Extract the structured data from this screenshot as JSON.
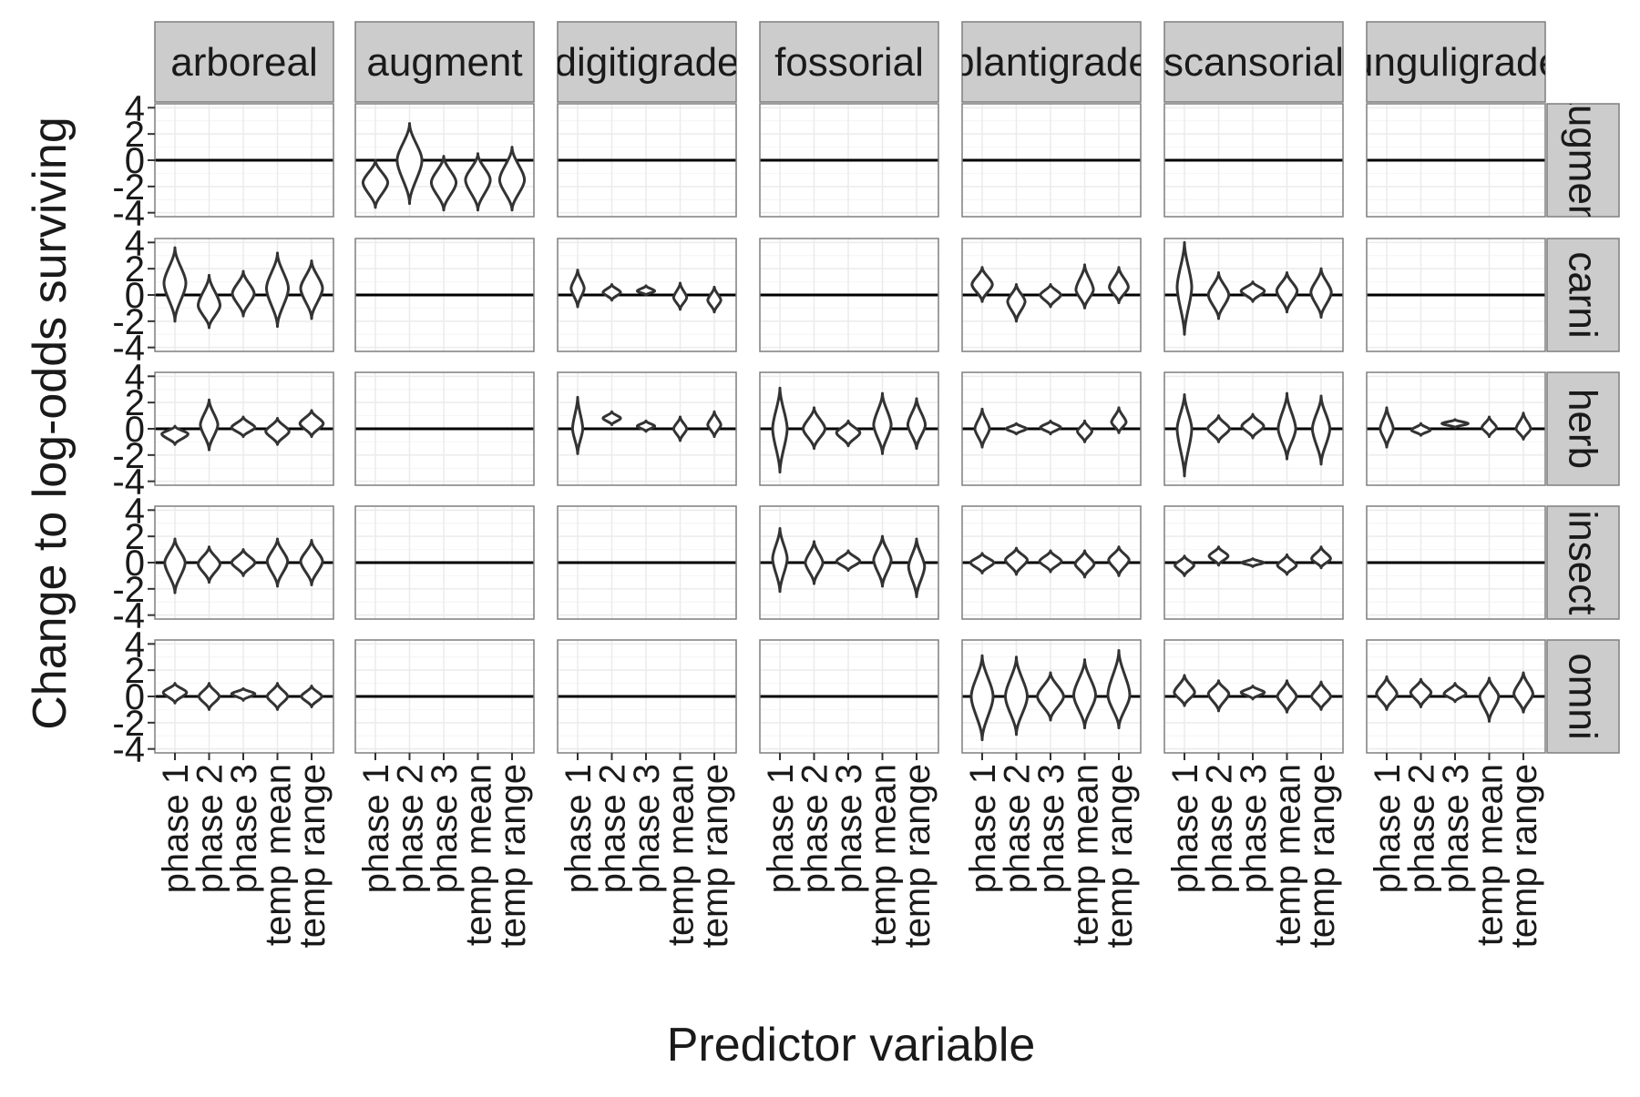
{
  "chart_data": {
    "type": "violin",
    "xlabel": "Predictor variable",
    "ylabel": "Change to log-odds surviving",
    "categories": [
      "phase 1",
      "phase 2",
      "phase 3",
      "temp mean",
      "temp range"
    ],
    "yticks": [
      4,
      2,
      0,
      -2,
      -4
    ],
    "ylim": [
      -4.3,
      4.3
    ],
    "grid": true,
    "columns": [
      "arboreal",
      "augment",
      "digitigrade",
      "fossorial",
      "plantigrade",
      "scansorial",
      "unguligrade"
    ],
    "rows": [
      "augment",
      "carni",
      "herb",
      "insect",
      "omni"
    ],
    "colors": {
      "violin_stroke": "#333333",
      "panel_border": "#7f7f7f",
      "strip_fill": "#cccccc",
      "grid_major": "#ebebeb",
      "grid_minor": "#f4f4f4",
      "zero_line": "#000000"
    },
    "violin_sets": {
      "aug": [
        {
          "c": -1.7,
          "lo": -3.6,
          "hi": 0.0,
          "w": 0.85
        },
        {
          "c": 0.0,
          "lo": -3.3,
          "hi": 2.8,
          "w": 0.85
        },
        {
          "c": -1.7,
          "lo": -3.8,
          "hi": 0.3,
          "w": 0.85
        },
        {
          "c": -1.5,
          "lo": -3.8,
          "hi": 0.5,
          "w": 0.85
        },
        {
          "c": -1.5,
          "lo": -3.8,
          "hi": 1.0,
          "w": 0.85
        }
      ],
      "arb_c": [
        {
          "c": 0.9,
          "lo": -2.0,
          "hi": 3.6,
          "w": 0.75
        },
        {
          "c": -0.8,
          "lo": -2.5,
          "hi": 1.5,
          "w": 0.75
        },
        {
          "c": 0.1,
          "lo": -1.6,
          "hi": 1.8,
          "w": 0.75
        },
        {
          "c": 0.5,
          "lo": -2.4,
          "hi": 3.2,
          "w": 0.75
        },
        {
          "c": 0.5,
          "lo": -1.8,
          "hi": 2.6,
          "w": 0.75
        }
      ],
      "arb_h": [
        {
          "c": -0.4,
          "lo": -1.2,
          "hi": 0.2,
          "w": 0.9
        },
        {
          "c": 0.3,
          "lo": -1.6,
          "hi": 2.2,
          "w": 0.6
        },
        {
          "c": 0.1,
          "lo": -0.6,
          "hi": 0.9,
          "w": 0.8
        },
        {
          "c": -0.2,
          "lo": -1.2,
          "hi": 0.8,
          "w": 0.8
        },
        {
          "c": 0.4,
          "lo": -0.6,
          "hi": 1.4,
          "w": 0.8
        }
      ],
      "arb_i": [
        {
          "c": 0.0,
          "lo": -2.3,
          "hi": 1.8,
          "w": 0.7
        },
        {
          "c": -0.1,
          "lo": -1.5,
          "hi": 1.2,
          "w": 0.75
        },
        {
          "c": 0.0,
          "lo": -1.0,
          "hi": 1.0,
          "w": 0.8
        },
        {
          "c": 0.1,
          "lo": -1.8,
          "hi": 1.8,
          "w": 0.7
        },
        {
          "c": 0.1,
          "lo": -1.7,
          "hi": 1.7,
          "w": 0.75
        }
      ],
      "arb_o": [
        {
          "c": 0.3,
          "lo": -0.5,
          "hi": 1.0,
          "w": 0.8
        },
        {
          "c": 0.0,
          "lo": -1.0,
          "hi": 1.0,
          "w": 0.7
        },
        {
          "c": 0.2,
          "lo": -0.3,
          "hi": 0.6,
          "w": 0.8
        },
        {
          "c": 0.0,
          "lo": -1.0,
          "hi": 1.0,
          "w": 0.7
        },
        {
          "c": 0.0,
          "lo": -0.8,
          "hi": 0.8,
          "w": 0.7
        }
      ],
      "dig_c": [
        {
          "c": 0.5,
          "lo": -0.9,
          "hi": 1.9,
          "w": 0.45
        },
        {
          "c": 0.2,
          "lo": -0.4,
          "hi": 0.8,
          "w": 0.6
        },
        {
          "c": 0.3,
          "lo": 0.0,
          "hi": 0.7,
          "w": 0.6
        },
        {
          "c": -0.2,
          "lo": -1.1,
          "hi": 0.9,
          "w": 0.45
        },
        {
          "c": -0.4,
          "lo": -1.3,
          "hi": 0.6,
          "w": 0.45
        }
      ],
      "dig_h": [
        {
          "c": 0.0,
          "lo": -1.9,
          "hi": 2.4,
          "w": 0.35
        },
        {
          "c": 0.8,
          "lo": 0.3,
          "hi": 1.3,
          "w": 0.6
        },
        {
          "c": 0.2,
          "lo": -0.2,
          "hi": 0.6,
          "w": 0.6
        },
        {
          "c": 0.0,
          "lo": -0.9,
          "hi": 0.9,
          "w": 0.45
        },
        {
          "c": 0.3,
          "lo": -0.6,
          "hi": 1.3,
          "w": 0.45
        }
      ],
      "fos_h": [
        {
          "c": 0.0,
          "lo": -3.3,
          "hi": 3.1,
          "w": 0.5
        },
        {
          "c": 0.0,
          "lo": -1.5,
          "hi": 1.6,
          "w": 0.75
        },
        {
          "c": -0.3,
          "lo": -1.3,
          "hi": 0.6,
          "w": 0.8
        },
        {
          "c": 0.3,
          "lo": -1.9,
          "hi": 2.7,
          "w": 0.6
        },
        {
          "c": 0.3,
          "lo": -1.5,
          "hi": 2.3,
          "w": 0.6
        }
      ],
      "fos_i": [
        {
          "c": 0.3,
          "lo": -2.2,
          "hi": 2.6,
          "w": 0.5
        },
        {
          "c": 0.0,
          "lo": -1.6,
          "hi": 1.6,
          "w": 0.6
        },
        {
          "c": 0.1,
          "lo": -0.6,
          "hi": 0.9,
          "w": 0.8
        },
        {
          "c": 0.2,
          "lo": -1.8,
          "hi": 2.0,
          "w": 0.6
        },
        {
          "c": -0.3,
          "lo": -2.6,
          "hi": 1.8,
          "w": 0.55
        }
      ],
      "pla_c": [
        {
          "c": 0.8,
          "lo": -0.5,
          "hi": 2.1,
          "w": 0.7
        },
        {
          "c": -0.5,
          "lo": -2.0,
          "hi": 0.8,
          "w": 0.6
        },
        {
          "c": 0.0,
          "lo": -0.9,
          "hi": 0.8,
          "w": 0.7
        },
        {
          "c": 0.4,
          "lo": -1.0,
          "hi": 2.3,
          "w": 0.6
        },
        {
          "c": 0.6,
          "lo": -0.6,
          "hi": 2.1,
          "w": 0.65
        }
      ],
      "pla_h": [
        {
          "c": 0.0,
          "lo": -1.4,
          "hi": 1.5,
          "w": 0.5
        },
        {
          "c": 0.0,
          "lo": -0.4,
          "hi": 0.4,
          "w": 0.7
        },
        {
          "c": 0.1,
          "lo": -0.4,
          "hi": 0.6,
          "w": 0.7
        },
        {
          "c": -0.2,
          "lo": -1.0,
          "hi": 0.6,
          "w": 0.5
        },
        {
          "c": 0.5,
          "lo": -0.3,
          "hi": 1.6,
          "w": 0.5
        }
      ],
      "pla_i": [
        {
          "c": 0.0,
          "lo": -0.8,
          "hi": 0.7,
          "w": 0.8
        },
        {
          "c": 0.2,
          "lo": -0.9,
          "hi": 1.1,
          "w": 0.75
        },
        {
          "c": 0.1,
          "lo": -0.7,
          "hi": 0.9,
          "w": 0.75
        },
        {
          "c": -0.1,
          "lo": -1.1,
          "hi": 0.9,
          "w": 0.65
        },
        {
          "c": 0.2,
          "lo": -1.0,
          "hi": 1.2,
          "w": 0.7
        }
      ],
      "pla_o": [
        {
          "c": 0.0,
          "lo": -3.3,
          "hi": 3.1,
          "w": 0.75
        },
        {
          "c": 0.0,
          "lo": -2.9,
          "hi": 3.0,
          "w": 0.75
        },
        {
          "c": 0.0,
          "lo": -1.8,
          "hi": 1.8,
          "w": 0.9
        },
        {
          "c": 0.1,
          "lo": -2.4,
          "hi": 2.8,
          "w": 0.75
        },
        {
          "c": 0.1,
          "lo": -2.4,
          "hi": 3.5,
          "w": 0.75
        }
      ],
      "sca_c": [
        {
          "c": 0.6,
          "lo": -3.0,
          "hi": 4.0,
          "w": 0.5
        },
        {
          "c": 0.0,
          "lo": -1.8,
          "hi": 1.7,
          "w": 0.7
        },
        {
          "c": 0.3,
          "lo": -0.5,
          "hi": 1.0,
          "w": 0.8
        },
        {
          "c": 0.3,
          "lo": -1.3,
          "hi": 1.7,
          "w": 0.7
        },
        {
          "c": 0.2,
          "lo": -1.7,
          "hi": 2.0,
          "w": 0.7
        }
      ],
      "sca_h": [
        {
          "c": 0.0,
          "lo": -3.6,
          "hi": 2.6,
          "w": 0.5
        },
        {
          "c": 0.0,
          "lo": -1.0,
          "hi": 1.0,
          "w": 0.75
        },
        {
          "c": 0.2,
          "lo": -0.7,
          "hi": 1.1,
          "w": 0.75
        },
        {
          "c": 0.0,
          "lo": -2.3,
          "hi": 2.7,
          "w": 0.6
        },
        {
          "c": 0.0,
          "lo": -2.7,
          "hi": 2.5,
          "w": 0.6
        }
      ],
      "sca_i": [
        {
          "c": -0.2,
          "lo": -1.0,
          "hi": 0.5,
          "w": 0.65
        },
        {
          "c": 0.5,
          "lo": -0.2,
          "hi": 1.2,
          "w": 0.65
        },
        {
          "c": 0.0,
          "lo": -0.3,
          "hi": 0.3,
          "w": 0.75
        },
        {
          "c": -0.2,
          "lo": -0.9,
          "hi": 0.6,
          "w": 0.65
        },
        {
          "c": 0.3,
          "lo": -0.4,
          "hi": 1.2,
          "w": 0.65
        }
      ],
      "sca_o": [
        {
          "c": 0.3,
          "lo": -0.7,
          "hi": 1.6,
          "w": 0.7
        },
        {
          "c": 0.2,
          "lo": -1.1,
          "hi": 1.2,
          "w": 0.7
        },
        {
          "c": 0.3,
          "lo": -0.2,
          "hi": 0.8,
          "w": 0.8
        },
        {
          "c": 0.0,
          "lo": -1.2,
          "hi": 1.2,
          "w": 0.65
        },
        {
          "c": 0.0,
          "lo": -1.0,
          "hi": 1.1,
          "w": 0.65
        }
      ],
      "ung_h": [
        {
          "c": 0.0,
          "lo": -1.4,
          "hi": 1.6,
          "w": 0.45
        },
        {
          "c": -0.1,
          "lo": -0.5,
          "hi": 0.4,
          "w": 0.65
        },
        {
          "c": 0.4,
          "lo": 0.1,
          "hi": 0.7,
          "w": 0.9
        },
        {
          "c": 0.1,
          "lo": -0.6,
          "hi": 0.9,
          "w": 0.5
        },
        {
          "c": 0.0,
          "lo": -0.8,
          "hi": 1.2,
          "w": 0.5
        }
      ],
      "ung_o": [
        {
          "c": 0.2,
          "lo": -1.0,
          "hi": 1.5,
          "w": 0.7
        },
        {
          "c": 0.3,
          "lo": -0.8,
          "hi": 1.3,
          "w": 0.7
        },
        {
          "c": 0.2,
          "lo": -0.4,
          "hi": 1.0,
          "w": 0.75
        },
        {
          "c": 0.0,
          "lo": -1.9,
          "hi": 1.4,
          "w": 0.65
        },
        {
          "c": 0.2,
          "lo": -1.2,
          "hi": 1.8,
          "w": 0.65
        }
      ]
    },
    "panels": [
      [
        "aug",
        "aug",
        "aug",
        "aug",
        "aug",
        "aug",
        "aug"
      ],
      [
        "arb_c",
        null,
        "dig_c",
        null,
        "pla_c",
        "sca_c",
        null
      ],
      [
        "arb_h",
        null,
        "dig_h",
        "fos_h",
        "pla_h",
        "sca_h",
        "ung_h"
      ],
      [
        "arb_i",
        null,
        null,
        "fos_i",
        "pla_i",
        "sca_i",
        null
      ],
      [
        "arb_o",
        null,
        null,
        null,
        "pla_o",
        "sca_o",
        "ung_o"
      ]
    ],
    "augment_column": 1
  }
}
